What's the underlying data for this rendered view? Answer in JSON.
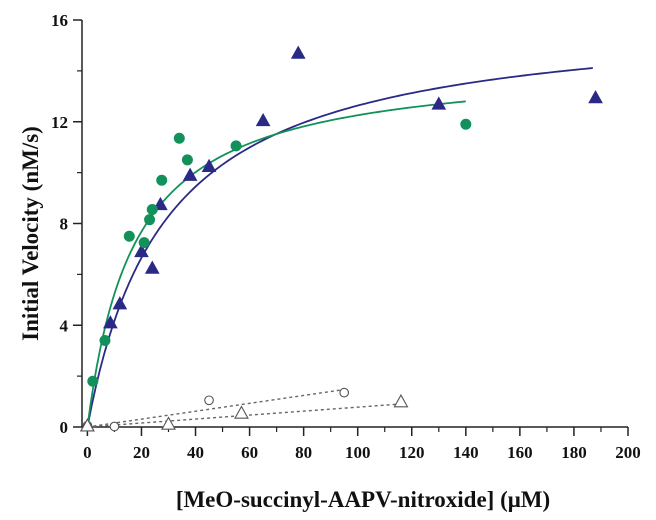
{
  "chart_data": {
    "type": "scatter",
    "title": "",
    "xlabel": "[MeO-succinyl-AAPV-nitroxide] (μM)",
    "ylabel": "Initial Velocity (nM/s)",
    "xlim": [
      -2,
      200
    ],
    "ylim": [
      0,
      16
    ],
    "x_ticks": [
      0,
      20,
      40,
      60,
      80,
      100,
      120,
      140,
      160,
      180,
      200
    ],
    "y_ticks": [
      0,
      4,
      8,
      12,
      16
    ],
    "grid": false,
    "legend": "none",
    "colors": {
      "navy": "#2a2a86",
      "green": "#12915a",
      "open": "#555555",
      "dotted": "#666666",
      "axis": "#222222"
    },
    "series": [
      {
        "marker": "triangle-filled",
        "color": "#2a2a86",
        "points": [
          [
            0,
            0.05
          ],
          [
            8.5,
            4.1
          ],
          [
            12,
            4.85
          ],
          [
            20,
            6.9
          ],
          [
            24,
            6.25
          ],
          [
            27,
            8.75
          ],
          [
            38,
            9.9
          ],
          [
            45,
            10.25
          ],
          [
            65,
            12.05
          ],
          [
            78,
            14.7
          ],
          [
            130,
            12.7
          ],
          [
            188,
            12.95
          ]
        ]
      },
      {
        "marker": "circle-filled",
        "color": "#12915a",
        "points": [
          [
            2,
            1.8
          ],
          [
            6.5,
            3.4
          ],
          [
            15.5,
            7.5
          ],
          [
            21,
            7.25
          ],
          [
            23,
            8.15
          ],
          [
            24,
            8.55
          ],
          [
            27.5,
            9.7
          ],
          [
            34,
            11.35
          ],
          [
            37,
            10.5
          ],
          [
            55,
            11.05
          ],
          [
            140,
            11.9
          ]
        ]
      },
      {
        "marker": "circle-open",
        "color": "#555555",
        "points": [
          [
            0,
            0.05
          ],
          [
            10,
            0.02
          ],
          [
            45,
            1.05
          ],
          [
            95,
            1.35
          ]
        ]
      },
      {
        "marker": "triangle-open",
        "color": "#555555",
        "points": [
          [
            0,
            0.05
          ],
          [
            30,
            0.12
          ],
          [
            57,
            0.55
          ],
          [
            116,
            1.0
          ]
        ]
      }
    ],
    "curves": [
      {
        "kind": "michaelis-menten",
        "vmax": 16.3,
        "km": 29,
        "x_range": [
          0,
          187
        ],
        "color": "#2a2a86",
        "style": "solid"
      },
      {
        "kind": "michaelis-menten",
        "vmax": 14.4,
        "km": 17.5,
        "x_range": [
          0,
          140
        ],
        "color": "#12915a",
        "style": "solid"
      },
      {
        "kind": "linear",
        "slope": 0.0155,
        "intercept": 0,
        "x_range": [
          0,
          95
        ],
        "color": "#666666",
        "style": "dotted"
      },
      {
        "kind": "linear",
        "slope": 0.0078,
        "intercept": 0,
        "x_range": [
          0,
          116
        ],
        "color": "#666666",
        "style": "dotted"
      }
    ]
  }
}
